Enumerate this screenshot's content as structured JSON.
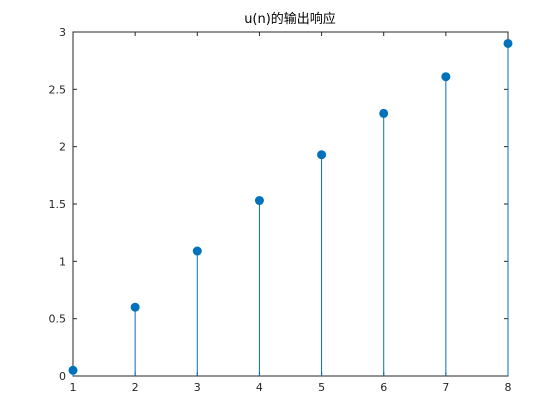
{
  "chart_data": {
    "type": "stem",
    "title": "u(n)的输出响应",
    "xlabel": "",
    "ylabel": "",
    "xlim": [
      1,
      8
    ],
    "ylim": [
      0,
      3
    ],
    "x": [
      1,
      2,
      3,
      4,
      5,
      6,
      7,
      8
    ],
    "y": [
      0.05,
      0.6,
      1.09,
      1.53,
      1.93,
      2.29,
      2.61,
      2.9
    ],
    "xticks": [
      1,
      2,
      3,
      4,
      5,
      6,
      7,
      8
    ],
    "xtick_labels": [
      "1",
      "2",
      "3",
      "4",
      "5",
      "6",
      "7",
      "8"
    ],
    "yticks": [
      0,
      0.5,
      1,
      1.5,
      2,
      2.5,
      3
    ],
    "ytick_labels": [
      "0",
      "0.5",
      "1",
      "1.5",
      "2",
      "2.5",
      "3"
    ],
    "grid": false,
    "box": true,
    "colors": {
      "series": "#0072bd",
      "axes": "#262626"
    }
  }
}
